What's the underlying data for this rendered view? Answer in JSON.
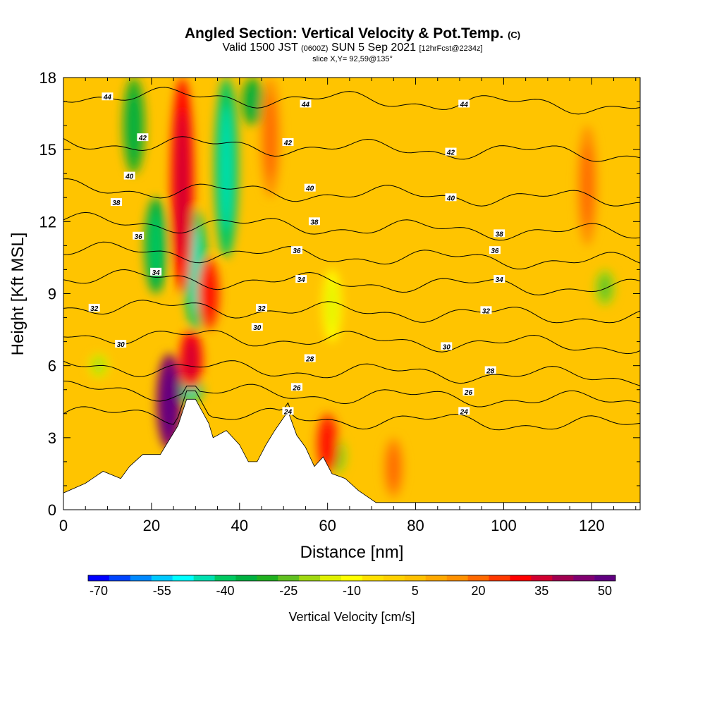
{
  "title": {
    "main": "Angled Section: Vertical Velocity & Pot.Temp.",
    "copyright": "(C)",
    "valid_prefix": "Valid 1500 JST",
    "valid_utc": "(0600Z)",
    "valid_date": "SUN 5 Sep 2021",
    "forecast": "[12hrFcst@2234z]",
    "slice": "slice X,Y= 92,59@135°"
  },
  "chart_data": {
    "type": "heatmap",
    "xlabel": "Distance [nm]",
    "ylabel": "Height [Kft MSL]",
    "xlim": [
      0,
      131
    ],
    "ylim": [
      0,
      18
    ],
    "x_ticks": [
      0,
      20,
      40,
      60,
      80,
      100,
      120
    ],
    "y_ticks": [
      0,
      3,
      6,
      9,
      12,
      15,
      18
    ],
    "colorbar": {
      "label": "Vertical Velocity [cm/s]",
      "tick_labels": [
        "-70",
        "-55",
        "-40",
        "-25",
        "-10",
        "5",
        "20",
        "35",
        "50"
      ],
      "colors": [
        "#0000ff",
        "#0044ff",
        "#0088ff",
        "#00c8ff",
        "#00ffff",
        "#00e0b0",
        "#00c860",
        "#00b040",
        "#20b020",
        "#60c020",
        "#a0d810",
        "#e0f000",
        "#ffff00",
        "#ffe000",
        "#ffd000",
        "#ffc000",
        "#ffa800",
        "#ff9000",
        "#ff6800",
        "#ff3800",
        "#ff0000",
        "#d00030",
        "#a00050",
        "#800070",
        "#600080"
      ]
    },
    "contour_field": "Potential Temperature",
    "contour_levels": [
      {
        "level": 24,
        "height_kft": 4.0
      },
      {
        "level": 26,
        "height_kft": 5.0
      },
      {
        "level": 28,
        "height_kft": 6.0
      },
      {
        "level": 30,
        "height_kft": 7.3
      },
      {
        "level": 32,
        "height_kft": 8.5
      },
      {
        "level": 34,
        "height_kft": 9.7
      },
      {
        "level": 36,
        "height_kft": 10.8
      },
      {
        "level": 38,
        "height_kft": 12.0
      },
      {
        "level": 40,
        "height_kft": 13.4
      },
      {
        "level": 42,
        "height_kft": 15.3
      },
      {
        "level": 44,
        "height_kft": 17.3
      }
    ],
    "contour_labels": [
      {
        "text": "44",
        "x": 10,
        "y": 17.2
      },
      {
        "text": "44",
        "x": 55,
        "y": 16.9
      },
      {
        "text": "44",
        "x": 91,
        "y": 16.9
      },
      {
        "text": "42",
        "x": 18,
        "y": 15.5
      },
      {
        "text": "42",
        "x": 51,
        "y": 15.3
      },
      {
        "text": "42",
        "x": 88,
        "y": 14.9
      },
      {
        "text": "40",
        "x": 15,
        "y": 13.9
      },
      {
        "text": "40",
        "x": 56,
        "y": 13.4
      },
      {
        "text": "40",
        "x": 88,
        "y": 13.0
      },
      {
        "text": "38",
        "x": 12,
        "y": 12.8
      },
      {
        "text": "38",
        "x": 57,
        "y": 12.0
      },
      {
        "text": "38",
        "x": 99,
        "y": 11.5
      },
      {
        "text": "36",
        "x": 17,
        "y": 11.4
      },
      {
        "text": "36",
        "x": 53,
        "y": 10.8
      },
      {
        "text": "36",
        "x": 98,
        "y": 10.8
      },
      {
        "text": "34",
        "x": 21,
        "y": 9.9
      },
      {
        "text": "34",
        "x": 54,
        "y": 9.6
      },
      {
        "text": "34",
        "x": 99,
        "y": 9.6
      },
      {
        "text": "32",
        "x": 7,
        "y": 8.4
      },
      {
        "text": "32",
        "x": 45,
        "y": 8.4
      },
      {
        "text": "32",
        "x": 96,
        "y": 8.3
      },
      {
        "text": "30",
        "x": 13,
        "y": 6.9
      },
      {
        "text": "30",
        "x": 44,
        "y": 7.6
      },
      {
        "text": "30",
        "x": 87,
        "y": 6.8
      },
      {
        "text": "28",
        "x": 56,
        "y": 6.3
      },
      {
        "text": "28",
        "x": 97,
        "y": 5.8
      },
      {
        "text": "26",
        "x": 53,
        "y": 5.1
      },
      {
        "text": "26",
        "x": 92,
        "y": 4.9
      },
      {
        "text": "24",
        "x": 51,
        "y": 4.1
      },
      {
        "text": "24",
        "x": 91,
        "y": 4.1
      }
    ],
    "terrain": [
      [
        0,
        0.7
      ],
      [
        5,
        1.1
      ],
      [
        9,
        1.6
      ],
      [
        13,
        1.3
      ],
      [
        15,
        1.8
      ],
      [
        18,
        2.3
      ],
      [
        22,
        2.3
      ],
      [
        23,
        2.6
      ],
      [
        26,
        3.5
      ],
      [
        28,
        4.6
      ],
      [
        30,
        4.6
      ],
      [
        33,
        3.6
      ],
      [
        34,
        3.0
      ],
      [
        37,
        3.3
      ],
      [
        40,
        2.7
      ],
      [
        42,
        2.0
      ],
      [
        44,
        2.0
      ],
      [
        46,
        2.7
      ],
      [
        48,
        3.3
      ],
      [
        51,
        4.1
      ],
      [
        53,
        3.1
      ],
      [
        55,
        2.6
      ],
      [
        57,
        1.8
      ],
      [
        59,
        2.2
      ],
      [
        61,
        1.5
      ],
      [
        64,
        1.3
      ],
      [
        67,
        0.8
      ],
      [
        71,
        0.3
      ],
      [
        131,
        0.3
      ]
    ],
    "updrafts": [
      {
        "x": 24,
        "ymin": 2.5,
        "ymax": 6.5,
        "value": 50
      },
      {
        "x": 29,
        "ymin": 5.0,
        "ymax": 7.5,
        "value": 35
      },
      {
        "x": 27,
        "ymin": 9.0,
        "ymax": 18.0,
        "value": 35
      },
      {
        "x": 33,
        "ymin": 7.5,
        "ymax": 10.5,
        "value": 30
      },
      {
        "x": 60,
        "ymin": 1.5,
        "ymax": 4.0,
        "value": 30
      },
      {
        "x": 47,
        "ymin": 13.0,
        "ymax": 18.0,
        "value": 20
      },
      {
        "x": 119,
        "ymin": 11.0,
        "ymax": 16.0,
        "value": 20
      },
      {
        "x": 75,
        "ymin": 0.5,
        "ymax": 3.0,
        "value": 20
      }
    ],
    "downdrafts": [
      {
        "x": 37,
        "ymin": 10.5,
        "ymax": 18.0,
        "value": -40
      },
      {
        "x": 30,
        "ymin": 7.5,
        "ymax": 12.5,
        "value": -40
      },
      {
        "x": 21,
        "ymin": 9.0,
        "ymax": 13.0,
        "value": -35
      },
      {
        "x": 16,
        "ymin": 14.0,
        "ymax": 18.0,
        "value": -30
      },
      {
        "x": 43,
        "ymin": 16.0,
        "ymax": 18.0,
        "value": -30
      },
      {
        "x": 29,
        "ymin": 4.5,
        "ymax": 5.5,
        "value": -40
      },
      {
        "x": 62,
        "ymin": 1.5,
        "ymax": 3.0,
        "value": -20
      },
      {
        "x": 61,
        "ymin": 7.0,
        "ymax": 10.0,
        "value": -10
      },
      {
        "x": 123,
        "ymin": 8.5,
        "ymax": 10.0,
        "value": -20
      },
      {
        "x": 8,
        "ymin": 5.5,
        "ymax": 6.5,
        "value": -15
      }
    ]
  }
}
